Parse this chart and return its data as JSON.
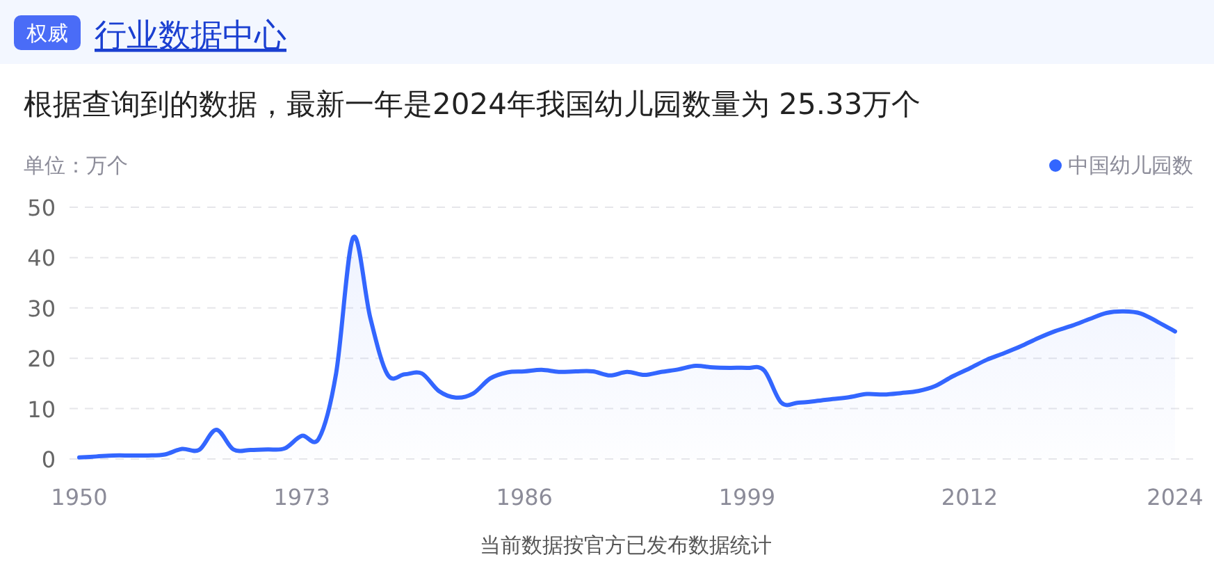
{
  "chart_data": {
    "type": "area",
    "title": "行业数据中心",
    "subtitle": "根据查询到的数据，最新一年是2024年我国幼儿园数量为 25.33万个",
    "ylabel": "单位：万个",
    "annotations": [
      "权威",
      "当前数据按官方已发布数据统计"
    ],
    "categories": [
      "1950",
      null,
      null,
      null,
      null,
      null,
      null,
      null,
      null,
      null,
      null,
      null,
      null,
      "1973",
      null,
      null,
      null,
      null,
      null,
      null,
      null,
      null,
      null,
      null,
      null,
      null,
      "1986",
      null,
      null,
      null,
      null,
      null,
      null,
      null,
      null,
      null,
      null,
      null,
      null,
      "1999",
      null,
      null,
      null,
      null,
      null,
      null,
      null,
      null,
      null,
      null,
      null,
      null,
      "2012",
      null,
      null,
      null,
      null,
      null,
      null,
      null,
      null,
      null,
      null,
      null,
      "2024"
    ],
    "series": [
      {
        "name": "中国幼儿园数",
        "color": "#3366ff",
        "values": [
          0.3,
          0.5,
          0.7,
          0.7,
          0.7,
          0.9,
          2.0,
          1.8,
          5.8,
          1.9,
          1.8,
          1.9,
          2.1,
          4.6,
          4.1,
          17,
          44,
          28,
          16.8,
          16.8,
          17.0,
          13.5,
          12.2,
          13.0,
          16.0,
          17.2,
          17.4,
          17.7,
          17.3,
          17.4,
          17.4,
          16.6,
          17.3,
          16.7,
          17.3,
          17.8,
          18.5,
          18.2,
          18.1,
          18.1,
          17.6,
          11.2,
          11.2,
          11.5,
          11.9,
          12.3,
          12.9,
          12.8,
          13.1,
          13.5,
          14.5,
          16.4,
          18.0,
          19.7,
          21.0,
          22.4,
          24.0,
          25.4,
          26.5,
          27.8,
          29.0,
          29.3,
          28.9,
          27.2,
          25.33
        ]
      }
    ],
    "ylim": [
      0,
      50
    ],
    "yticks": [
      0,
      10,
      20,
      30,
      40,
      50
    ],
    "grid": "y",
    "legend": "top right"
  }
}
